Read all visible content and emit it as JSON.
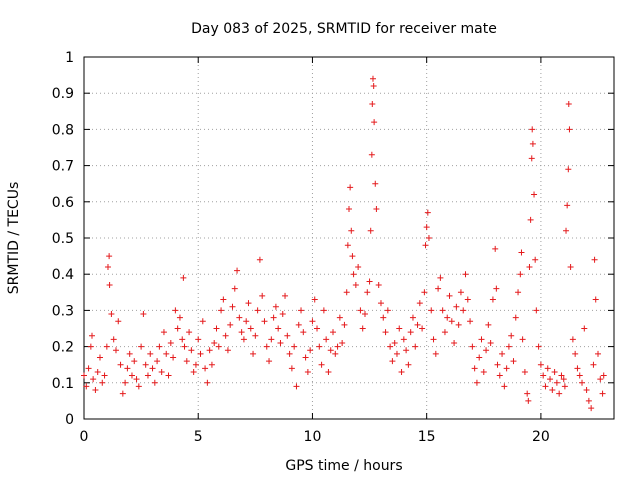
{
  "chart_data": {
    "type": "scatter",
    "title": "Day 083 of 2025, SRMTID for receiver mate",
    "xlabel": "GPS time / hours",
    "ylabel": "SRMTID / TECUs",
    "xlim": [
      0,
      23.2
    ],
    "ylim": [
      0,
      1
    ],
    "x_ticks": [
      0,
      5,
      10,
      15,
      20
    ],
    "y_ticks": [
      0,
      0.1,
      0.2,
      0.3,
      0.4,
      0.5,
      0.6,
      0.7,
      0.8,
      0.9,
      1
    ],
    "x_tick_labels": [
      "0",
      "5",
      "10",
      "15",
      "20"
    ],
    "y_tick_labels": [
      "0",
      "0.1",
      "0.2",
      "0.3",
      "0.4",
      "0.5",
      "0.6",
      "0.7",
      "0.8",
      "0.9",
      "1"
    ],
    "grid": true,
    "marker": "plus",
    "color": "#e41a1c",
    "series": [
      {
        "name": "SRMTID",
        "points": [
          [
            0.0,
            0.12
          ],
          [
            0.1,
            0.09
          ],
          [
            0.2,
            0.14
          ],
          [
            0.3,
            0.2
          ],
          [
            0.35,
            0.23
          ],
          [
            0.4,
            0.11
          ],
          [
            0.5,
            0.08
          ],
          [
            0.6,
            0.13
          ],
          [
            0.7,
            0.17
          ],
          [
            0.8,
            0.1
          ],
          [
            0.9,
            0.12
          ],
          [
            1.0,
            0.2
          ],
          [
            1.05,
            0.42
          ],
          [
            1.1,
            0.45
          ],
          [
            1.12,
            0.37
          ],
          [
            1.2,
            0.29
          ],
          [
            1.3,
            0.22
          ],
          [
            1.4,
            0.19
          ],
          [
            1.5,
            0.27
          ],
          [
            1.6,
            0.15
          ],
          [
            1.7,
            0.07
          ],
          [
            1.8,
            0.1
          ],
          [
            1.9,
            0.14
          ],
          [
            2.0,
            0.18
          ],
          [
            2.1,
            0.12
          ],
          [
            2.2,
            0.16
          ],
          [
            2.3,
            0.11
          ],
          [
            2.4,
            0.09
          ],
          [
            2.5,
            0.2
          ],
          [
            2.6,
            0.29
          ],
          [
            2.7,
            0.15
          ],
          [
            2.8,
            0.12
          ],
          [
            2.9,
            0.18
          ],
          [
            3.0,
            0.14
          ],
          [
            3.1,
            0.1
          ],
          [
            3.2,
            0.16
          ],
          [
            3.3,
            0.2
          ],
          [
            3.4,
            0.13
          ],
          [
            3.5,
            0.24
          ],
          [
            3.6,
            0.18
          ],
          [
            3.7,
            0.12
          ],
          [
            3.8,
            0.21
          ],
          [
            3.9,
            0.17
          ],
          [
            4.0,
            0.3
          ],
          [
            4.1,
            0.25
          ],
          [
            4.2,
            0.28
          ],
          [
            4.3,
            0.22
          ],
          [
            4.35,
            0.39
          ],
          [
            4.4,
            0.2
          ],
          [
            4.5,
            0.16
          ],
          [
            4.6,
            0.24
          ],
          [
            4.7,
            0.19
          ],
          [
            4.8,
            0.13
          ],
          [
            4.9,
            0.15
          ],
          [
            5.0,
            0.22
          ],
          [
            5.1,
            0.18
          ],
          [
            5.2,
            0.27
          ],
          [
            5.3,
            0.14
          ],
          [
            5.4,
            0.1
          ],
          [
            5.5,
            0.19
          ],
          [
            5.6,
            0.15
          ],
          [
            5.7,
            0.21
          ],
          [
            5.8,
            0.25
          ],
          [
            5.9,
            0.2
          ],
          [
            6.0,
            0.3
          ],
          [
            6.1,
            0.33
          ],
          [
            6.2,
            0.23
          ],
          [
            6.3,
            0.19
          ],
          [
            6.4,
            0.26
          ],
          [
            6.5,
            0.31
          ],
          [
            6.6,
            0.36
          ],
          [
            6.7,
            0.41
          ],
          [
            6.8,
            0.28
          ],
          [
            6.9,
            0.24
          ],
          [
            7.0,
            0.22
          ],
          [
            7.1,
            0.27
          ],
          [
            7.2,
            0.32
          ],
          [
            7.3,
            0.25
          ],
          [
            7.4,
            0.18
          ],
          [
            7.5,
            0.23
          ],
          [
            7.6,
            0.3
          ],
          [
            7.7,
            0.44
          ],
          [
            7.8,
            0.34
          ],
          [
            7.9,
            0.27
          ],
          [
            8.0,
            0.2
          ],
          [
            8.1,
            0.16
          ],
          [
            8.2,
            0.22
          ],
          [
            8.3,
            0.28
          ],
          [
            8.4,
            0.31
          ],
          [
            8.5,
            0.25
          ],
          [
            8.6,
            0.21
          ],
          [
            8.7,
            0.29
          ],
          [
            8.8,
            0.34
          ],
          [
            8.9,
            0.23
          ],
          [
            9.0,
            0.18
          ],
          [
            9.1,
            0.14
          ],
          [
            9.2,
            0.2
          ],
          [
            9.3,
            0.09
          ],
          [
            9.4,
            0.26
          ],
          [
            9.5,
            0.3
          ],
          [
            9.6,
            0.24
          ],
          [
            9.7,
            0.17
          ],
          [
            9.8,
            0.13
          ],
          [
            9.9,
            0.19
          ],
          [
            10.0,
            0.27
          ],
          [
            10.1,
            0.33
          ],
          [
            10.2,
            0.25
          ],
          [
            10.3,
            0.2
          ],
          [
            10.4,
            0.15
          ],
          [
            10.5,
            0.3
          ],
          [
            10.6,
            0.22
          ],
          [
            10.7,
            0.13
          ],
          [
            10.8,
            0.19
          ],
          [
            10.9,
            0.24
          ],
          [
            11.0,
            0.18
          ],
          [
            11.1,
            0.2
          ],
          [
            11.2,
            0.28
          ],
          [
            11.3,
            0.21
          ],
          [
            11.4,
            0.26
          ],
          [
            11.5,
            0.35
          ],
          [
            11.55,
            0.48
          ],
          [
            11.6,
            0.58
          ],
          [
            11.65,
            0.64
          ],
          [
            11.7,
            0.52
          ],
          [
            11.75,
            0.45
          ],
          [
            11.8,
            0.4
          ],
          [
            11.9,
            0.37
          ],
          [
            12.0,
            0.42
          ],
          [
            12.1,
            0.3
          ],
          [
            12.2,
            0.25
          ],
          [
            12.3,
            0.29
          ],
          [
            12.4,
            0.35
          ],
          [
            12.5,
            0.38
          ],
          [
            12.55,
            0.52
          ],
          [
            12.6,
            0.73
          ],
          [
            12.62,
            0.87
          ],
          [
            12.65,
            0.94
          ],
          [
            12.68,
            0.92
          ],
          [
            12.7,
            0.82
          ],
          [
            12.75,
            0.65
          ],
          [
            12.8,
            0.58
          ],
          [
            12.9,
            0.37
          ],
          [
            13.0,
            0.32
          ],
          [
            13.1,
            0.28
          ],
          [
            13.2,
            0.24
          ],
          [
            13.3,
            0.3
          ],
          [
            13.4,
            0.2
          ],
          [
            13.5,
            0.16
          ],
          [
            13.6,
            0.21
          ],
          [
            13.7,
            0.18
          ],
          [
            13.8,
            0.25
          ],
          [
            13.9,
            0.13
          ],
          [
            14.0,
            0.22
          ],
          [
            14.1,
            0.19
          ],
          [
            14.2,
            0.15
          ],
          [
            14.3,
            0.24
          ],
          [
            14.4,
            0.28
          ],
          [
            14.5,
            0.2
          ],
          [
            14.6,
            0.26
          ],
          [
            14.7,
            0.32
          ],
          [
            14.8,
            0.25
          ],
          [
            14.9,
            0.35
          ],
          [
            14.95,
            0.48
          ],
          [
            15.0,
            0.53
          ],
          [
            15.05,
            0.57
          ],
          [
            15.1,
            0.5
          ],
          [
            15.2,
            0.3
          ],
          [
            15.3,
            0.22
          ],
          [
            15.4,
            0.18
          ],
          [
            15.5,
            0.36
          ],
          [
            15.6,
            0.39
          ],
          [
            15.7,
            0.3
          ],
          [
            15.8,
            0.24
          ],
          [
            15.9,
            0.28
          ],
          [
            16.0,
            0.34
          ],
          [
            16.1,
            0.27
          ],
          [
            16.2,
            0.21
          ],
          [
            16.3,
            0.31
          ],
          [
            16.4,
            0.26
          ],
          [
            16.5,
            0.35
          ],
          [
            16.6,
            0.3
          ],
          [
            16.7,
            0.4
          ],
          [
            16.8,
            0.33
          ],
          [
            16.9,
            0.27
          ],
          [
            17.0,
            0.2
          ],
          [
            17.1,
            0.14
          ],
          [
            17.2,
            0.1
          ],
          [
            17.3,
            0.17
          ],
          [
            17.4,
            0.22
          ],
          [
            17.5,
            0.13
          ],
          [
            17.6,
            0.19
          ],
          [
            17.7,
            0.26
          ],
          [
            17.8,
            0.21
          ],
          [
            17.9,
            0.33
          ],
          [
            18.0,
            0.47
          ],
          [
            18.05,
            0.36
          ],
          [
            18.1,
            0.15
          ],
          [
            18.2,
            0.12
          ],
          [
            18.3,
            0.18
          ],
          [
            18.4,
            0.09
          ],
          [
            18.5,
            0.14
          ],
          [
            18.6,
            0.2
          ],
          [
            18.7,
            0.23
          ],
          [
            18.8,
            0.16
          ],
          [
            18.9,
            0.28
          ],
          [
            19.0,
            0.35
          ],
          [
            19.1,
            0.4
          ],
          [
            19.15,
            0.46
          ],
          [
            19.2,
            0.22
          ],
          [
            19.3,
            0.13
          ],
          [
            19.4,
            0.07
          ],
          [
            19.45,
            0.05
          ],
          [
            19.5,
            0.42
          ],
          [
            19.55,
            0.55
          ],
          [
            19.6,
            0.72
          ],
          [
            19.62,
            0.8
          ],
          [
            19.65,
            0.76
          ],
          [
            19.7,
            0.62
          ],
          [
            19.75,
            0.44
          ],
          [
            19.8,
            0.3
          ],
          [
            19.9,
            0.2
          ],
          [
            20.0,
            0.15
          ],
          [
            20.1,
            0.12
          ],
          [
            20.2,
            0.09
          ],
          [
            20.3,
            0.14
          ],
          [
            20.4,
            0.11
          ],
          [
            20.5,
            0.08
          ],
          [
            20.6,
            0.13
          ],
          [
            20.7,
            0.1
          ],
          [
            20.8,
            0.07
          ],
          [
            20.9,
            0.12
          ],
          [
            21.0,
            0.11
          ],
          [
            21.05,
            0.09
          ],
          [
            21.1,
            0.52
          ],
          [
            21.15,
            0.59
          ],
          [
            21.2,
            0.69
          ],
          [
            21.22,
            0.87
          ],
          [
            21.25,
            0.8
          ],
          [
            21.3,
            0.42
          ],
          [
            21.4,
            0.22
          ],
          [
            21.5,
            0.18
          ],
          [
            21.6,
            0.14
          ],
          [
            21.7,
            0.12
          ],
          [
            21.8,
            0.1
          ],
          [
            21.9,
            0.25
          ],
          [
            22.0,
            0.08
          ],
          [
            22.1,
            0.05
          ],
          [
            22.2,
            0.03
          ],
          [
            22.3,
            0.15
          ],
          [
            22.35,
            0.44
          ],
          [
            22.4,
            0.33
          ],
          [
            22.5,
            0.18
          ],
          [
            22.6,
            0.11
          ],
          [
            22.7,
            0.07
          ],
          [
            22.75,
            0.12
          ]
        ]
      }
    ]
  }
}
